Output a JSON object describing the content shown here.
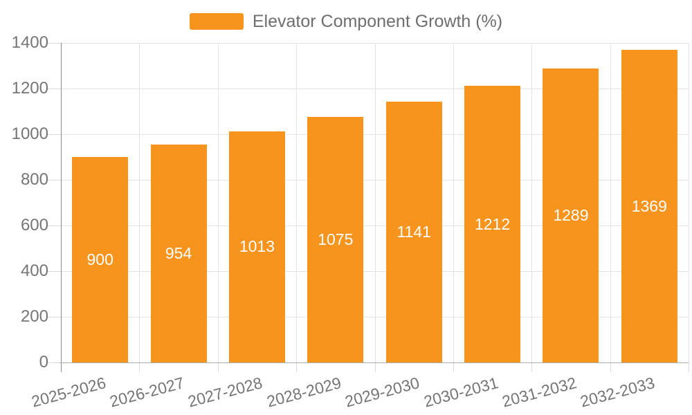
{
  "legend": {
    "label": "Elevator Component Growth (%)"
  },
  "chart_data": {
    "type": "bar",
    "title": "Elevator Component Growth (%)",
    "series_name": "Elevator Component Growth (%)",
    "categories": [
      "2025-2026",
      "2026-2027",
      "2027-2028",
      "2028-2029",
      "2029-2030",
      "2030-2031",
      "2031-2032",
      "2032-2033"
    ],
    "values": [
      900,
      954,
      1013,
      1075,
      1141,
      1212,
      1289,
      1369
    ],
    "xlabel": "",
    "ylabel": "",
    "ylim": [
      0,
      1400
    ],
    "yticks": [
      0,
      200,
      400,
      600,
      800,
      1000,
      1200,
      1400
    ],
    "grid": true,
    "legend_position": "top-center",
    "value_label_position": "inside-middle",
    "xtick_rotation_deg": -15
  },
  "colors": {
    "bar": "#f7941e",
    "bar_value_label": "#ffffff",
    "gridline": "#e3e3e3",
    "tick": "#d9d9d9",
    "axis_y_line": "#898989",
    "axis_x_line": "#ababab",
    "tick_label": "#757575",
    "legend_text": "#6e6e6e",
    "background": "#ffffff"
  }
}
